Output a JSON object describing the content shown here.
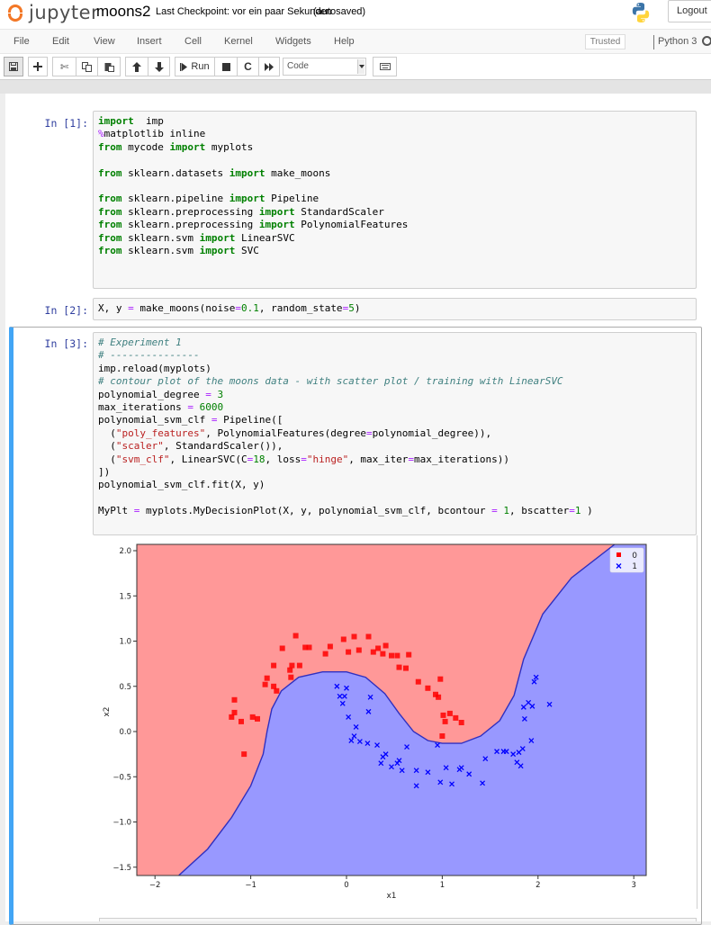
{
  "header": {
    "logo_text": "jupyter",
    "notebook_name": "moons2",
    "checkpoint_text": "Last Checkpoint: vor ein paar Sekunden",
    "autosave_text": "(autosaved)",
    "logout_label": "Logout"
  },
  "menubar": {
    "items": [
      "File",
      "Edit",
      "View",
      "Insert",
      "Cell",
      "Kernel",
      "Widgets",
      "Help"
    ],
    "trusted_label": "Trusted",
    "kernel_name": "Python 3"
  },
  "toolbar": {
    "run_label": "Run",
    "cell_type": "Code",
    "buttons": [
      "save",
      "insert-cell-below",
      "cut",
      "copy",
      "paste",
      "move-up",
      "move-down",
      "run",
      "interrupt",
      "restart",
      "restart-run-all",
      "cell-type",
      "command-palette"
    ]
  },
  "cells": [
    {
      "prompt": "In [1]:",
      "lines": [
        [
          [
            "kw",
            "import"
          ],
          [
            "",
            "  imp"
          ]
        ],
        [
          [
            "mg",
            "%"
          ],
          [
            "",
            "matplotlib inline"
          ]
        ],
        [
          [
            "kw",
            "from"
          ],
          [
            "",
            " mycode "
          ],
          [
            "kw",
            "import"
          ],
          [
            "",
            " myplots"
          ]
        ],
        [],
        [
          [
            "kw",
            "from"
          ],
          [
            "",
            " sklearn.datasets "
          ],
          [
            "kw",
            "import"
          ],
          [
            "",
            " make_moons"
          ]
        ],
        [],
        [
          [
            "kw",
            "from"
          ],
          [
            "",
            " sklearn.pipeline "
          ],
          [
            "kw",
            "import"
          ],
          [
            "",
            " Pipeline"
          ]
        ],
        [
          [
            "kw",
            "from"
          ],
          [
            "",
            " sklearn.preprocessing "
          ],
          [
            "kw",
            "import"
          ],
          [
            "",
            " StandardScaler"
          ]
        ],
        [
          [
            "kw",
            "from"
          ],
          [
            "",
            " sklearn.preprocessing "
          ],
          [
            "kw",
            "import"
          ],
          [
            "",
            " PolynomialFeatures"
          ]
        ],
        [
          [
            "kw",
            "from"
          ],
          [
            "",
            " sklearn.svm "
          ],
          [
            "kw",
            "import"
          ],
          [
            "",
            " LinearSVC"
          ]
        ],
        [
          [
            "kw",
            "from"
          ],
          [
            "",
            " sklearn.svm "
          ],
          [
            "kw",
            "import"
          ],
          [
            "",
            " SVC"
          ]
        ],
        []
      ]
    },
    {
      "prompt": "In [2]:",
      "lines": [
        [
          [
            "",
            "X, y "
          ],
          [
            "op",
            "="
          ],
          [
            "",
            " make_moons(noise"
          ],
          [
            "op",
            "="
          ],
          [
            "num",
            "0.1"
          ],
          [
            "",
            ", random_state"
          ],
          [
            "op",
            "="
          ],
          [
            "num",
            "5"
          ],
          [
            "",
            ")"
          ]
        ]
      ]
    },
    {
      "prompt": "In [3]:",
      "lines": [
        [
          [
            "cm",
            "# Experiment 1"
          ]
        ],
        [
          [
            "cm",
            "# ---------------"
          ]
        ],
        [
          [
            "",
            "imp.reload(myplots)"
          ]
        ],
        [
          [
            "cm",
            "# contour plot of the moons data - with scatter plot / training with LinearSVC"
          ]
        ],
        [
          [
            "",
            "polynomial_degree "
          ],
          [
            "op",
            "="
          ],
          [
            "",
            " "
          ],
          [
            "num",
            "3"
          ]
        ],
        [
          [
            "",
            "max_iterations "
          ],
          [
            "op",
            "="
          ],
          [
            "",
            " "
          ],
          [
            "num",
            "6000"
          ]
        ],
        [
          [
            "",
            "polynomial_svm_clf "
          ],
          [
            "op",
            "="
          ],
          [
            "",
            " Pipeline(["
          ]
        ],
        [
          [
            "",
            "  ("
          ],
          [
            "str",
            "\"poly_features\""
          ],
          [
            "",
            ", PolynomialFeatures(degree"
          ],
          [
            "op",
            "="
          ],
          [
            "",
            "polynomial_degree)),"
          ]
        ],
        [
          [
            "",
            "  ("
          ],
          [
            "str",
            "\"scaler\""
          ],
          [
            "",
            ", StandardScaler()),"
          ]
        ],
        [
          [
            "",
            "  ("
          ],
          [
            "str",
            "\"svm_clf\""
          ],
          [
            "",
            ", LinearSVC(C"
          ],
          [
            "op",
            "="
          ],
          [
            "num",
            "18"
          ],
          [
            "",
            ", loss"
          ],
          [
            "op",
            "="
          ],
          [
            "str",
            "\"hinge\""
          ],
          [
            "",
            ", max_iter"
          ],
          [
            "op",
            "="
          ],
          [
            "",
            "max_iterations))"
          ]
        ],
        [
          [
            "",
            "])"
          ]
        ],
        [
          [
            "",
            "polynomial_svm_clf.fit(X, y)"
          ]
        ],
        [],
        [
          [
            "",
            "MyPlt "
          ],
          [
            "op",
            "="
          ],
          [
            "",
            " myplots.MyDecisionPlot(X, y, polynomial_svm_clf, bcontour "
          ],
          [
            "op",
            "="
          ],
          [
            "",
            " "
          ],
          [
            "num",
            "1"
          ],
          [
            "",
            ", bscatter"
          ],
          [
            "op",
            "="
          ],
          [
            "num",
            "1"
          ],
          [
            "",
            " )"
          ]
        ],
        []
      ]
    }
  ],
  "chart_data": {
    "type": "scatter",
    "title": "",
    "xlabel": "x1",
    "ylabel": "x2",
    "xlim": [
      -2.19,
      3.13
    ],
    "ylim": [
      -1.59,
      2.07
    ],
    "xticks": [
      "-2",
      "-1",
      "0",
      "1",
      "2",
      "3"
    ],
    "xtick_values": [
      -2,
      -1,
      0,
      1,
      2,
      3
    ],
    "yticks": [
      "2.0",
      "1.5",
      "1.0",
      "0.5",
      "0.0",
      "-0.5",
      "-1.0",
      "-1.5"
    ],
    "ytick_values": [
      2.0,
      1.5,
      1.0,
      0.5,
      0.0,
      -0.5,
      -1.0,
      -1.5
    ],
    "grid": false,
    "legend": {
      "position": "upper right",
      "entries": [
        {
          "label": "0",
          "marker": "square",
          "color": "#ff0000"
        },
        {
          "label": "1",
          "marker": "x",
          "color": "#0000ff"
        }
      ]
    },
    "background_regions": {
      "class_0_color": "#ff9898",
      "class_1_color": "#9898ff",
      "boundary_color": "#3030c0"
    },
    "decision_boundary": [
      [
        -1.75,
        -1.59
      ],
      [
        -1.45,
        -1.3
      ],
      [
        -1.2,
        -0.95
      ],
      [
        -1.0,
        -0.6
      ],
      [
        -0.87,
        -0.25
      ],
      [
        -0.83,
        0.0
      ],
      [
        -0.78,
        0.25
      ],
      [
        -0.68,
        0.45
      ],
      [
        -0.5,
        0.6
      ],
      [
        -0.25,
        0.66
      ],
      [
        0.0,
        0.66
      ],
      [
        0.2,
        0.6
      ],
      [
        0.4,
        0.42
      ],
      [
        0.55,
        0.2
      ],
      [
        0.7,
        0.0
      ],
      [
        0.85,
        -0.1
      ],
      [
        1.0,
        -0.13
      ],
      [
        1.2,
        -0.13
      ],
      [
        1.4,
        -0.05
      ],
      [
        1.6,
        0.12
      ],
      [
        1.75,
        0.4
      ],
      [
        1.85,
        0.8
      ],
      [
        2.05,
        1.3
      ],
      [
        2.35,
        1.7
      ],
      [
        2.8,
        2.07
      ]
    ],
    "series": [
      {
        "name": "0",
        "marker": "square",
        "color": "#ff0000",
        "points": [
          [
            -1.17,
            0.35
          ],
          [
            -1.2,
            0.16
          ],
          [
            -1.17,
            0.21
          ],
          [
            -1.1,
            0.11
          ],
          [
            -0.98,
            0.16
          ],
          [
            -0.93,
            0.14
          ],
          [
            -1.07,
            -0.25
          ],
          [
            -0.85,
            0.52
          ],
          [
            -0.83,
            0.59
          ],
          [
            -0.76,
            0.5
          ],
          [
            -0.73,
            0.45
          ],
          [
            -0.76,
            0.73
          ],
          [
            -0.67,
            0.92
          ],
          [
            -0.58,
            0.6
          ],
          [
            -0.59,
            0.68
          ],
          [
            -0.57,
            0.73
          ],
          [
            -0.49,
            0.73
          ],
          [
            -0.53,
            1.06
          ],
          [
            -0.43,
            0.93
          ],
          [
            -0.39,
            0.93
          ],
          [
            -0.22,
            0.86
          ],
          [
            -0.17,
            0.94
          ],
          [
            -0.03,
            1.02
          ],
          [
            0.02,
            0.88
          ],
          [
            0.08,
            1.05
          ],
          [
            0.13,
            0.9
          ],
          [
            0.23,
            1.05
          ],
          [
            0.28,
            0.88
          ],
          [
            0.33,
            0.92
          ],
          [
            0.38,
            0.86
          ],
          [
            0.41,
            0.95
          ],
          [
            0.47,
            0.84
          ],
          [
            0.53,
            0.84
          ],
          [
            0.55,
            0.71
          ],
          [
            0.62,
            0.7
          ],
          [
            0.65,
            0.85
          ],
          [
            0.75,
            0.55
          ],
          [
            0.85,
            0.48
          ],
          [
            0.93,
            0.41
          ],
          [
            0.98,
            0.58
          ],
          [
            0.96,
            0.38
          ],
          [
            1.01,
            0.18
          ],
          [
            1.03,
            0.11
          ],
          [
            1.08,
            0.2
          ],
          [
            1.14,
            0.15
          ],
          [
            1.0,
            -0.05
          ],
          [
            1.2,
            0.1
          ]
        ]
      },
      {
        "name": "1",
        "marker": "x",
        "color": "#0000ff",
        "points": [
          [
            -0.1,
            0.5
          ],
          [
            0.0,
            0.48
          ],
          [
            -0.07,
            0.39
          ],
          [
            -0.02,
            0.39
          ],
          [
            -0.04,
            0.31
          ],
          [
            0.02,
            0.16
          ],
          [
            0.1,
            0.05
          ],
          [
            0.23,
            0.22
          ],
          [
            0.25,
            0.38
          ],
          [
            0.08,
            -0.05
          ],
          [
            0.05,
            -0.1
          ],
          [
            0.14,
            -0.11
          ],
          [
            0.22,
            -0.13
          ],
          [
            0.38,
            -0.28
          ],
          [
            0.41,
            -0.25
          ],
          [
            0.32,
            -0.15
          ],
          [
            0.53,
            -0.35
          ],
          [
            0.36,
            -0.35
          ],
          [
            0.47,
            -0.39
          ],
          [
            0.55,
            -0.32
          ],
          [
            0.63,
            -0.17
          ],
          [
            0.73,
            -0.43
          ],
          [
            0.73,
            -0.6
          ],
          [
            0.85,
            -0.45
          ],
          [
            0.98,
            -0.56
          ],
          [
            1.04,
            -0.4
          ],
          [
            1.1,
            -0.58
          ],
          [
            1.18,
            -0.42
          ],
          [
            1.28,
            -0.47
          ],
          [
            1.42,
            -0.57
          ],
          [
            1.45,
            -0.3
          ],
          [
            1.57,
            -0.22
          ],
          [
            1.67,
            -0.22
          ],
          [
            1.74,
            -0.25
          ],
          [
            1.8,
            -0.23
          ],
          [
            1.78,
            -0.34
          ],
          [
            1.84,
            -0.19
          ],
          [
            1.86,
            0.14
          ],
          [
            1.85,
            0.27
          ],
          [
            1.94,
            0.28
          ],
          [
            1.93,
            -0.1
          ],
          [
            1.96,
            0.55
          ],
          [
            1.98,
            0.6
          ],
          [
            2.12,
            0.3
          ],
          [
            1.82,
            -0.38
          ],
          [
            1.9,
            0.32
          ],
          [
            1.64,
            -0.22
          ],
          [
            1.2,
            -0.4
          ],
          [
            0.95,
            -0.15
          ],
          [
            0.58,
            -0.43
          ]
        ]
      }
    ]
  }
}
